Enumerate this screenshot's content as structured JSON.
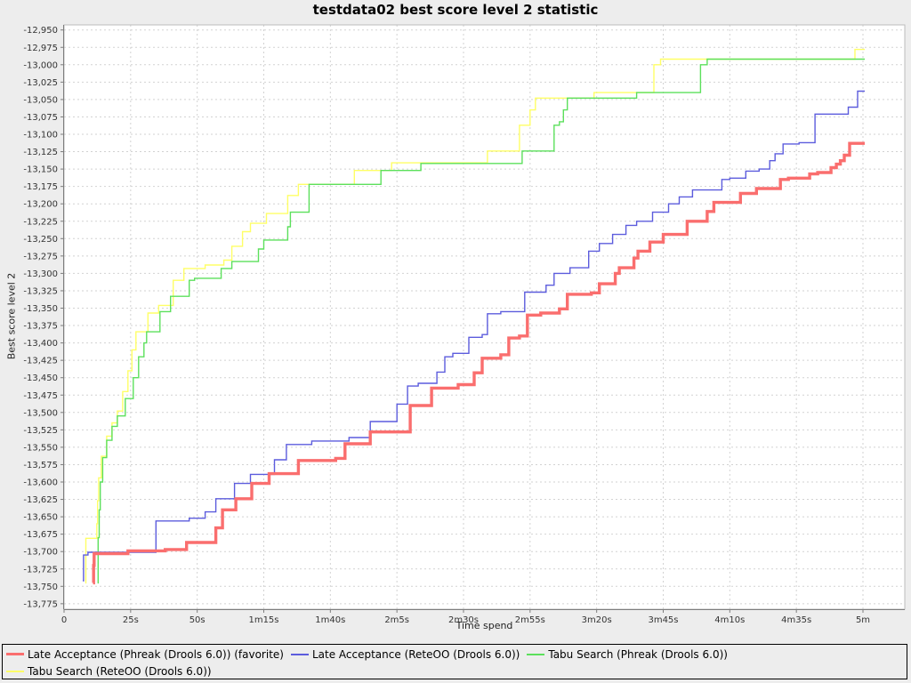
{
  "chart_data": {
    "type": "line",
    "subtype": "step-after",
    "title": "testdata02 best score level 2 statistic",
    "xlabel": "Time spend",
    "ylabel": "Best score level 2",
    "xlim": [
      0,
      300
    ],
    "ylim": [
      -13775,
      -12950
    ],
    "ytick_step": 25,
    "grid": true,
    "legend_position": "bottom",
    "xticks": [
      {
        "t": 0,
        "label": "0"
      },
      {
        "t": 25,
        "label": "25s"
      },
      {
        "t": 50,
        "label": "50s"
      },
      {
        "t": 75,
        "label": "1m15s"
      },
      {
        "t": 100,
        "label": "1m40s"
      },
      {
        "t": 125,
        "label": "2m5s"
      },
      {
        "t": 150,
        "label": "2m30s"
      },
      {
        "t": 175,
        "label": "2m55s"
      },
      {
        "t": 200,
        "label": "3m20s"
      },
      {
        "t": 225,
        "label": "3m45s"
      },
      {
        "t": 250,
        "label": "4m10s"
      },
      {
        "t": 275,
        "label": "4m35s"
      },
      {
        "t": 300,
        "label": "5m"
      }
    ],
    "series": [
      {
        "name": "Late Acceptance (Phreak (Drools 6.0)) (favorite)",
        "color": "#fa6e6e",
        "stroke_width": 3.4,
        "points": [
          [
            10.9,
            -13745
          ],
          [
            11.1,
            -13720
          ],
          [
            11.3,
            -13703
          ],
          [
            24,
            -13699
          ],
          [
            38,
            -13697
          ],
          [
            46,
            -13687
          ],
          [
            57,
            -13666
          ],
          [
            59.5,
            -13640
          ],
          [
            64.5,
            -13624
          ],
          [
            70.5,
            -13602
          ],
          [
            77,
            -13588
          ],
          [
            88,
            -13569
          ],
          [
            102,
            -13566
          ],
          [
            105.5,
            -13545
          ],
          [
            115,
            -13528
          ],
          [
            130,
            -13490
          ],
          [
            138,
            -13465
          ],
          [
            148,
            -13460
          ],
          [
            154,
            -13443
          ],
          [
            157,
            -13422
          ],
          [
            164,
            -13417
          ],
          [
            167,
            -13393
          ],
          [
            171,
            -13390
          ],
          [
            174,
            -13360
          ],
          [
            179,
            -13357
          ],
          [
            186,
            -13351
          ],
          [
            189,
            -13330
          ],
          [
            198,
            -13328
          ],
          [
            201,
            -13315
          ],
          [
            207,
            -13300
          ],
          [
            208.5,
            -13292
          ],
          [
            214,
            -13278
          ],
          [
            215.5,
            -13268
          ],
          [
            220,
            -13255
          ],
          [
            225,
            -13244
          ],
          [
            234,
            -13225
          ],
          [
            241.5,
            -13211
          ],
          [
            244,
            -13198
          ],
          [
            254,
            -13185
          ],
          [
            260,
            -13178
          ],
          [
            269,
            -13165
          ],
          [
            272,
            -13163
          ],
          [
            280,
            -13157
          ],
          [
            283,
            -13155
          ],
          [
            288,
            -13148
          ],
          [
            290,
            -13143
          ],
          [
            291.5,
            -13138
          ],
          [
            293,
            -13130
          ],
          [
            295,
            -13113
          ]
        ]
      },
      {
        "name": "Late Acceptance (ReteOO (Drools 6.0))",
        "color": "#5c5cdd",
        "stroke_width": 1.4,
        "points": [
          [
            7,
            -13742
          ],
          [
            7.3,
            -13705
          ],
          [
            9,
            -13701
          ],
          [
            34.5,
            -13656
          ],
          [
            47,
            -13652
          ],
          [
            53,
            -13643
          ],
          [
            57,
            -13624
          ],
          [
            64,
            -13602
          ],
          [
            70,
            -13589
          ],
          [
            79,
            -13568
          ],
          [
            83.5,
            -13546
          ],
          [
            93,
            -13541
          ],
          [
            107,
            -13536
          ],
          [
            115,
            -13513
          ],
          [
            125,
            -13488
          ],
          [
            129,
            -13462
          ],
          [
            133,
            -13458
          ],
          [
            140,
            -13442
          ],
          [
            143,
            -13420
          ],
          [
            146,
            -13415
          ],
          [
            152,
            -13392
          ],
          [
            157,
            -13388
          ],
          [
            159,
            -13358
          ],
          [
            164,
            -13355
          ],
          [
            173,
            -13327
          ],
          [
            181,
            -13317
          ],
          [
            184,
            -13300
          ],
          [
            190,
            -13292
          ],
          [
            197,
            -13268
          ],
          [
            201,
            -13257
          ],
          [
            206,
            -13244
          ],
          [
            211,
            -13231
          ],
          [
            215,
            -13225
          ],
          [
            221,
            -13212
          ],
          [
            227,
            -13200
          ],
          [
            231,
            -13190
          ],
          [
            236,
            -13180
          ],
          [
            247,
            -13165
          ],
          [
            250,
            -13163
          ],
          [
            256,
            -13153
          ],
          [
            261,
            -13150
          ],
          [
            265,
            -13138
          ],
          [
            267,
            -13128
          ],
          [
            270,
            -13114
          ],
          [
            276,
            -13112
          ],
          [
            282,
            -13071
          ],
          [
            294.5,
            -13061
          ],
          [
            298,
            -13038
          ]
        ]
      },
      {
        "name": "Tabu Search (Phreak (Drools 6.0))",
        "color": "#5ce05c",
        "stroke_width": 1.4,
        "points": [
          [
            12.6,
            -13745
          ],
          [
            12.8,
            -13680
          ],
          [
            13.2,
            -13640
          ],
          [
            13.6,
            -13600
          ],
          [
            14.5,
            -13565
          ],
          [
            16,
            -13540
          ],
          [
            18,
            -13520
          ],
          [
            20,
            -13505
          ],
          [
            23,
            -13480
          ],
          [
            26,
            -13450
          ],
          [
            28,
            -13420
          ],
          [
            30,
            -13400
          ],
          [
            31,
            -13384
          ],
          [
            36,
            -13355
          ],
          [
            40,
            -13333
          ],
          [
            47,
            -13310
          ],
          [
            49,
            -13307
          ],
          [
            59,
            -13293
          ],
          [
            63,
            -13283
          ],
          [
            73,
            -13265
          ],
          [
            75,
            -13252
          ],
          [
            84,
            -13233
          ],
          [
            85,
            -13212
          ],
          [
            92,
            -13172
          ],
          [
            119,
            -13152
          ],
          [
            134,
            -13142
          ],
          [
            172,
            -13124
          ],
          [
            184,
            -13087
          ],
          [
            186,
            -13082
          ],
          [
            187.5,
            -13065
          ],
          [
            189,
            -13048
          ],
          [
            215,
            -13040
          ],
          [
            239,
            -13000
          ],
          [
            241.5,
            -12992
          ]
        ]
      },
      {
        "name": "Tabu Search (ReteOO (Drools 6.0))",
        "color": "#ffff66",
        "stroke_width": 1.4,
        "points": [
          [
            8,
            -13745
          ],
          [
            8.2,
            -13681
          ],
          [
            12.3,
            -13660
          ],
          [
            12.6,
            -13627
          ],
          [
            13,
            -13594
          ],
          [
            14,
            -13563
          ],
          [
            16,
            -13534
          ],
          [
            18,
            -13515
          ],
          [
            20,
            -13498
          ],
          [
            22,
            -13470
          ],
          [
            24,
            -13440
          ],
          [
            25.5,
            -13410
          ],
          [
            27,
            -13384
          ],
          [
            31.5,
            -13357
          ],
          [
            35.5,
            -13346
          ],
          [
            41,
            -13310
          ],
          [
            45,
            -13293
          ],
          [
            53,
            -13288
          ],
          [
            60,
            -13281
          ],
          [
            63,
            -13261
          ],
          [
            67,
            -13240
          ],
          [
            70,
            -13228
          ],
          [
            76,
            -13214
          ],
          [
            84,
            -13188
          ],
          [
            88,
            -13172
          ],
          [
            109,
            -13152
          ],
          [
            123,
            -13141
          ],
          [
            159,
            -13124
          ],
          [
            171,
            -13087
          ],
          [
            175,
            -13065
          ],
          [
            177,
            -13048
          ],
          [
            199,
            -13040
          ],
          [
            221.5,
            -13000
          ],
          [
            224,
            -12992
          ],
          [
            297,
            -12978
          ]
        ]
      }
    ]
  }
}
